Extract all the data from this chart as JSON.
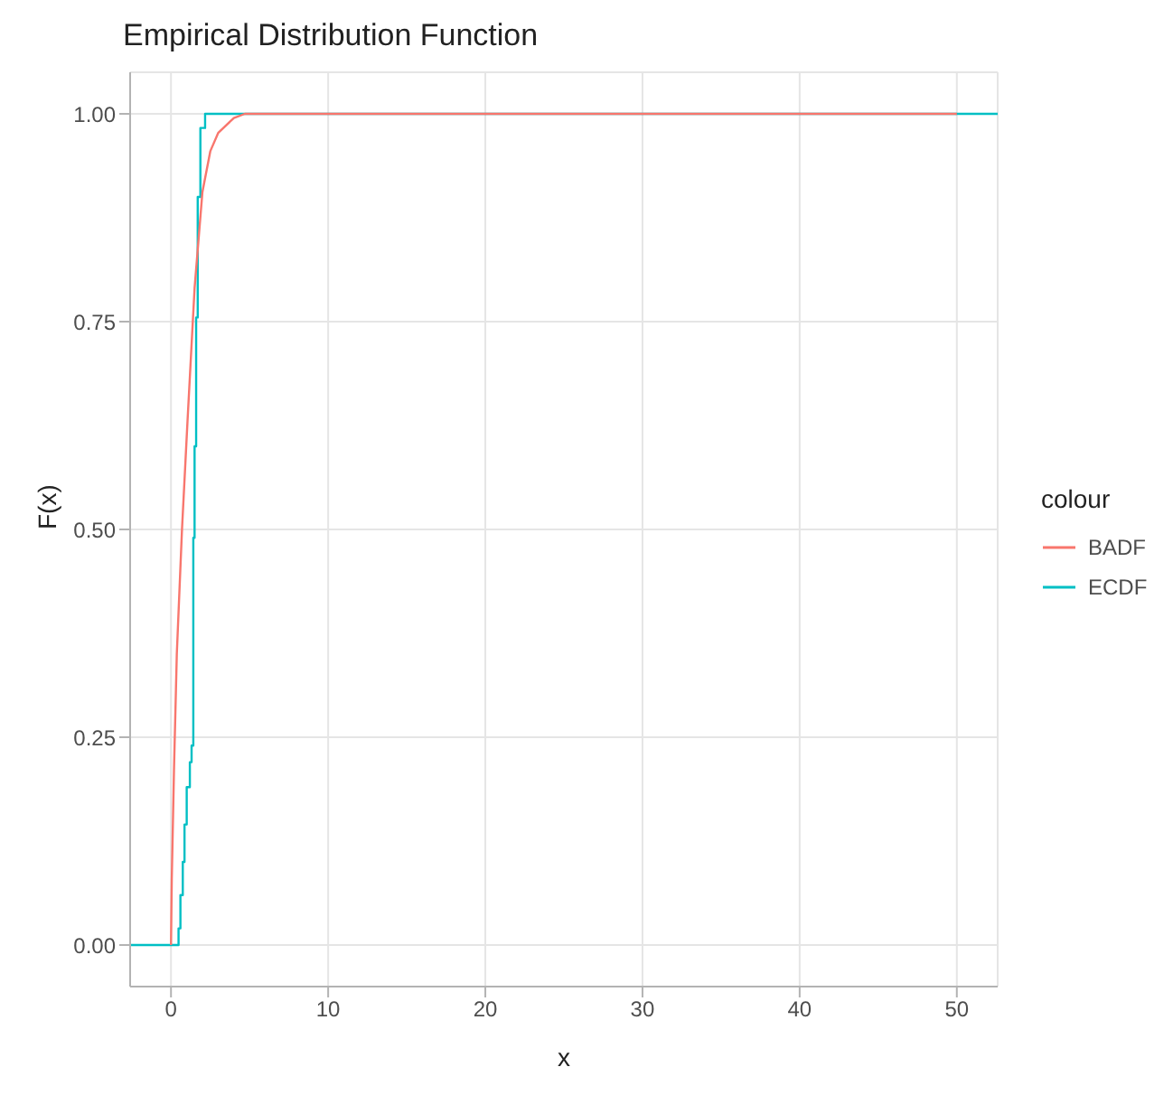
{
  "chart_data": {
    "type": "line",
    "title": "Empirical Distribution Function",
    "xlabel": "x",
    "ylabel": "F(x)",
    "legend_title": "colour",
    "xlim": [
      -2.6,
      52.6
    ],
    "xticks": [
      0,
      10,
      20,
      30,
      40,
      50
    ],
    "ylim": [
      -0.05,
      1.05
    ],
    "yticks": [
      {
        "value": 0,
        "label": "0.00"
      },
      {
        "value": 0.25,
        "label": "0.25"
      },
      {
        "value": 0.5,
        "label": "0.50"
      },
      {
        "value": 0.75,
        "label": "0.75"
      },
      {
        "value": 1,
        "label": "1.00"
      }
    ],
    "grid": true,
    "legend": "right",
    "marker": "none",
    "line_style": "solid",
    "series": [
      {
        "name": "BADF",
        "color": "#f8766d",
        "type": "line",
        "x": [
          0,
          0.05,
          0.19,
          0.37,
          0.7,
          1.05,
          1.5,
          2.0,
          2.5,
          3.0,
          4.0,
          4.7,
          50
        ],
        "values": [
          0,
          0.08,
          0.21,
          0.35,
          0.5,
          0.63,
          0.79,
          0.906,
          0.955,
          0.977,
          0.995,
          1,
          1
        ]
      },
      {
        "name": "ECDF",
        "color": "#00bfc4",
        "type": "step",
        "x": [
          -2.6,
          0.48,
          0.6,
          0.75,
          0.86,
          1.0,
          1.2,
          1.31,
          1.42,
          1.5,
          1.6,
          1.7,
          1.87,
          2.17,
          52.6
        ],
        "values": [
          0,
          0.02,
          0.06,
          0.1,
          0.145,
          0.19,
          0.22,
          0.24,
          0.49,
          0.6,
          0.755,
          0.9,
          0.983,
          1,
          1
        ]
      }
    ]
  }
}
